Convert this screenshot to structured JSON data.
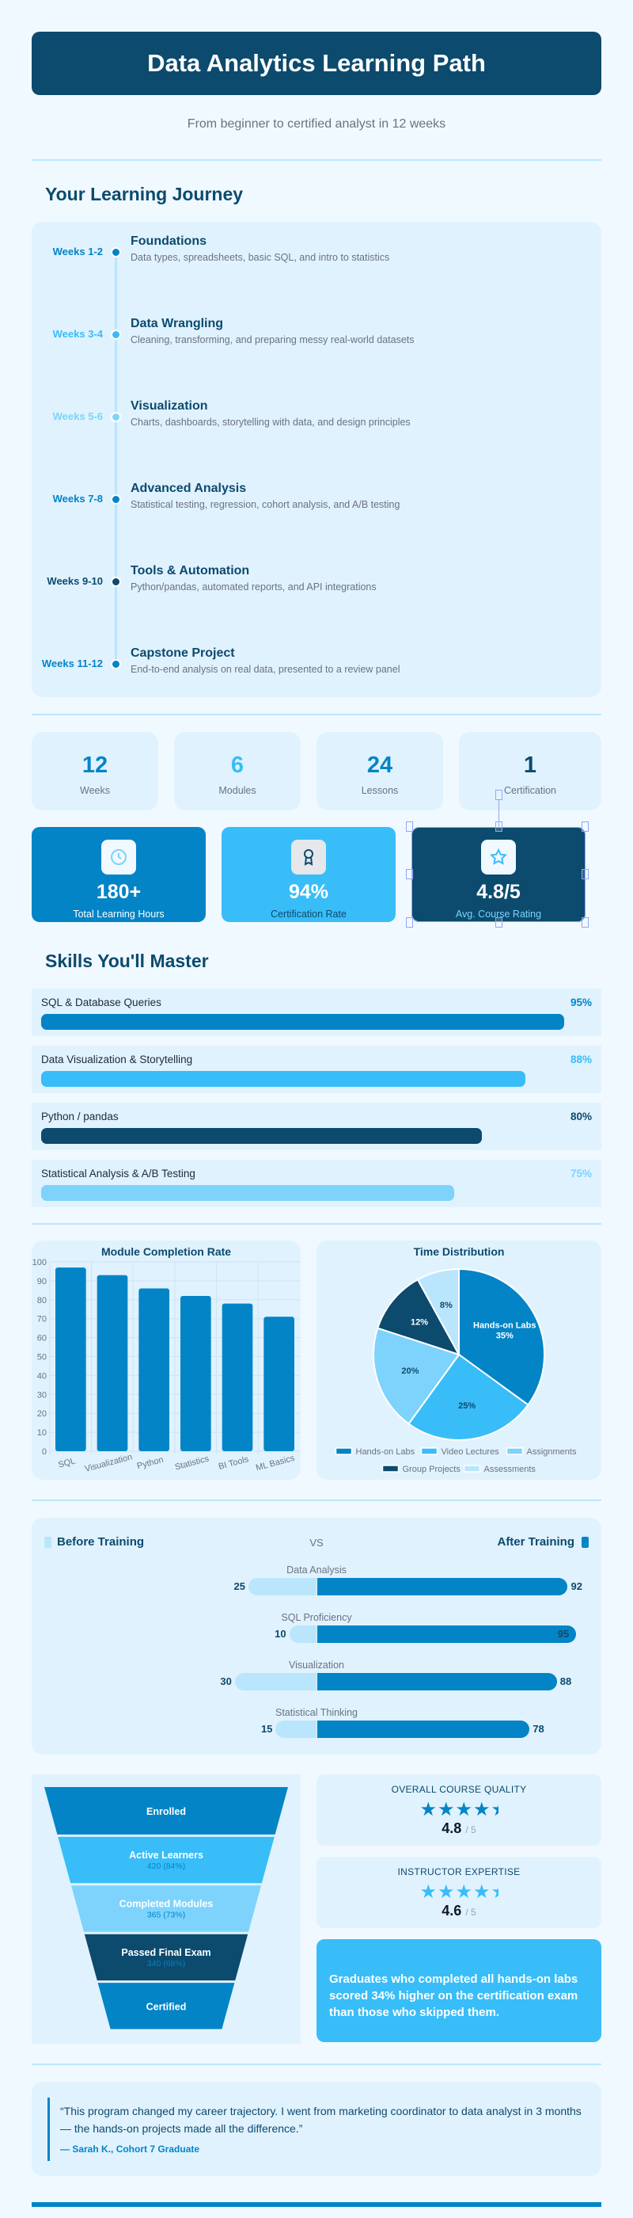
{
  "header": {
    "title": "Data Analytics Learning Path",
    "subtitle": "From beginner to certified analyst in 12 weeks"
  },
  "colors": {
    "navy": "#0c4a6e",
    "primary": "#0284c7",
    "sky": "#38bdf8",
    "light": "#7dd3fc",
    "pale": "#bae6fd",
    "card": "#e0f2fe",
    "page": "#f0f9ff"
  },
  "journey": {
    "title": "Your Learning Journey",
    "items": [
      {
        "weeks": "Weeks 1-2",
        "title": "Foundations",
        "desc": "Data types, spreadsheets, basic SQL, and intro to statistics",
        "color": "#0284c7"
      },
      {
        "weeks": "Weeks 3-4",
        "title": "Data Wrangling",
        "desc": "Cleaning, transforming, and preparing messy real-world datasets",
        "color": "#38bdf8"
      },
      {
        "weeks": "Weeks 5-6",
        "title": "Visualization",
        "desc": "Charts, dashboards, storytelling with data, and design principles",
        "color": "#7dd3fc"
      },
      {
        "weeks": "Weeks 7-8",
        "title": "Advanced Analysis",
        "desc": "Statistical testing, regression, cohort analysis, and A/B testing",
        "color": "#0284c7"
      },
      {
        "weeks": "Weeks 9-10",
        "title": "Tools & Automation",
        "desc": "Python/pandas, automated reports, and API integrations",
        "color": "#0c4a6e"
      },
      {
        "weeks": "Weeks 11-12",
        "title": "Capstone Project",
        "desc": "End-to-end analysis on real data, presented to a review panel",
        "color": "#0284c7"
      }
    ]
  },
  "stats": [
    {
      "value": "12",
      "label": "Weeks",
      "color": "#0284c7"
    },
    {
      "value": "6",
      "label": "Modules",
      "color": "#38bdf8"
    },
    {
      "value": "24",
      "label": "Lessons",
      "color": "#0284c7"
    },
    {
      "value": "1",
      "label": "Certification",
      "color": "#0c4a6e"
    }
  ],
  "highlights": [
    {
      "value": "180+",
      "label": "Total Learning Hours",
      "icon": "clock-icon",
      "bg": "#0284c7"
    },
    {
      "value": "94%",
      "label": "Certification Rate",
      "icon": "award-ribbon-icon",
      "bg": "#38bdf8"
    },
    {
      "value": "4.8/5",
      "label": "Avg. Course Rating",
      "icon": "star-icon",
      "bg": "#0c4a6e"
    }
  ],
  "skills": {
    "title": "Skills You'll Master",
    "items": [
      {
        "label": "SQL & Database Queries",
        "percent": 95,
        "percent_label": "95%",
        "color": "#0284c7"
      },
      {
        "label": "Data Visualization & Storytelling",
        "percent": 88,
        "percent_label": "88%",
        "color": "#38bdf8"
      },
      {
        "label": "Python / pandas",
        "percent": 80,
        "percent_label": "80%",
        "color": "#0c4a6e"
      },
      {
        "label": "Statistical Analysis & A/B Testing",
        "percent": 75,
        "percent_label": "75%",
        "color": "#7dd3fc"
      }
    ]
  },
  "chart_data": [
    {
      "type": "bar",
      "title": "Module Completion Rate",
      "categories": [
        "SQL",
        "Visualization",
        "Python",
        "Statistics",
        "BI Tools",
        "ML Basics"
      ],
      "values": [
        97,
        93,
        86,
        82,
        78,
        71
      ],
      "ylim": [
        0,
        100
      ],
      "yticks": [
        0,
        10,
        20,
        30,
        40,
        50,
        60,
        70,
        80,
        90,
        100
      ],
      "grid": true,
      "color": "#0284c7"
    },
    {
      "type": "pie",
      "title": "Time Distribution",
      "categories": [
        "Hands-on Labs",
        "Video Lectures",
        "Assignments",
        "Group Projects",
        "Assessments"
      ],
      "values": [
        35,
        25,
        20,
        12,
        8
      ],
      "labels": [
        "Hands-on Labs 35%",
        "25%",
        "20%",
        "12%",
        "8%"
      ],
      "colors": [
        "#0284c7",
        "#38bdf8",
        "#7dd3fc",
        "#0c4a6e",
        "#bae6fd"
      ],
      "legend": "bottom"
    },
    {
      "type": "bar",
      "orientation": "diverging",
      "legend": {
        "before": "Before Training",
        "vs": "VS",
        "after": "After Training"
      },
      "categories": [
        "Data Analysis",
        "SQL Proficiency",
        "Visualization",
        "Statistical Thinking"
      ],
      "series": [
        {
          "name": "Before Training",
          "values": [
            25,
            10,
            30,
            15
          ],
          "color": "#bae6fd"
        },
        {
          "name": "After Training",
          "values": [
            92,
            95,
            88,
            78
          ],
          "color": "#0284c7"
        }
      ]
    },
    {
      "type": "funnel",
      "stages": [
        {
          "label": "Enrolled",
          "detail": "",
          "color": "#0284c7"
        },
        {
          "label": "Active Learners",
          "detail": "420 (84%)",
          "color": "#38bdf8"
        },
        {
          "label": "Completed Modules",
          "detail": "365 (73%)",
          "color": "#7dd3fc"
        },
        {
          "label": "Passed Final Exam",
          "detail": "340 (68%)",
          "color": "#0c4a6e"
        },
        {
          "label": "Certified",
          "detail": "",
          "color": "#0284c7"
        }
      ]
    }
  ],
  "ratings": [
    {
      "title": "OVERALL COURSE QUALITY",
      "score": "4.8",
      "max": "/ 5",
      "value": 4.8,
      "color": "#0284c7"
    },
    {
      "title": "INSTRUCTOR EXPERTISE",
      "score": "4.6",
      "max": "/ 5",
      "value": 4.6,
      "color": "#38bdf8"
    }
  ],
  "insight": "Graduates who completed all hands-on labs scored 34% higher on the certification exam than those who skipped them.",
  "testimonial": {
    "quote": "“This program changed my career trajectory. I went from marketing coordinator to data analyst in 3 months — the hands-on projects made all the difference.”",
    "author": "— Sarah K., Cohort 7 Graduate"
  }
}
